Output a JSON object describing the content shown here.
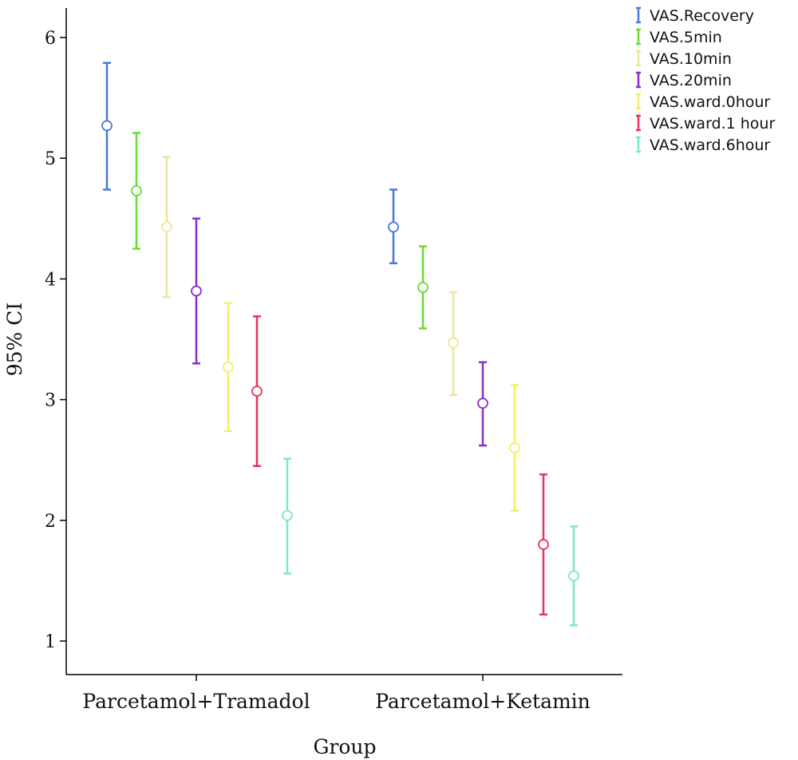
{
  "chart_data": {
    "type": "errorbar",
    "xlabel": "Group",
    "ylabel": "95% CI",
    "ylim": [
      0.7,
      6.25
    ],
    "yticks": [
      1,
      2,
      3,
      4,
      5,
      6
    ],
    "categories": [
      "Parcetamol+Tramadol",
      "Parcetamol+Ketamin"
    ],
    "legend_position": "top-right",
    "series": [
      {
        "name": "VAS.Recovery",
        "color": "#4a78d6",
        "points": [
          {
            "mean": 5.27,
            "low": 4.74,
            "high": 5.79
          },
          {
            "mean": 4.43,
            "low": 4.13,
            "high": 4.74
          }
        ]
      },
      {
        "name": "VAS.5min",
        "color": "#66dd33",
        "points": [
          {
            "mean": 4.73,
            "low": 4.25,
            "high": 5.21
          },
          {
            "mean": 3.93,
            "low": 3.59,
            "high": 4.27
          }
        ]
      },
      {
        "name": "VAS.10min",
        "color": "#ece79a",
        "points": [
          {
            "mean": 4.43,
            "low": 3.85,
            "high": 5.01
          },
          {
            "mean": 3.47,
            "low": 3.04,
            "high": 3.89
          }
        ]
      },
      {
        "name": "VAS.20min",
        "color": "#8b2fc4",
        "points": [
          {
            "mean": 3.9,
            "low": 3.3,
            "high": 4.5
          },
          {
            "mean": 2.97,
            "low": 2.62,
            "high": 3.31
          }
        ]
      },
      {
        "name": "VAS.ward.0hour",
        "color": "#f6ee66",
        "points": [
          {
            "mean": 3.27,
            "low": 2.74,
            "high": 3.8
          },
          {
            "mean": 2.6,
            "low": 2.08,
            "high": 3.12
          }
        ]
      },
      {
        "name": "VAS.ward.1 hour",
        "color": "#e8335a",
        "points": [
          {
            "mean": 3.07,
            "low": 2.45,
            "high": 3.69
          },
          {
            "mean": 1.8,
            "low": 1.22,
            "high": 2.38
          }
        ]
      },
      {
        "name": "VAS.ward.6hour",
        "color": "#7ae8cf",
        "points": [
          {
            "mean": 2.04,
            "low": 1.56,
            "high": 2.51
          },
          {
            "mean": 1.54,
            "low": 1.13,
            "high": 1.95
          }
        ]
      }
    ]
  }
}
